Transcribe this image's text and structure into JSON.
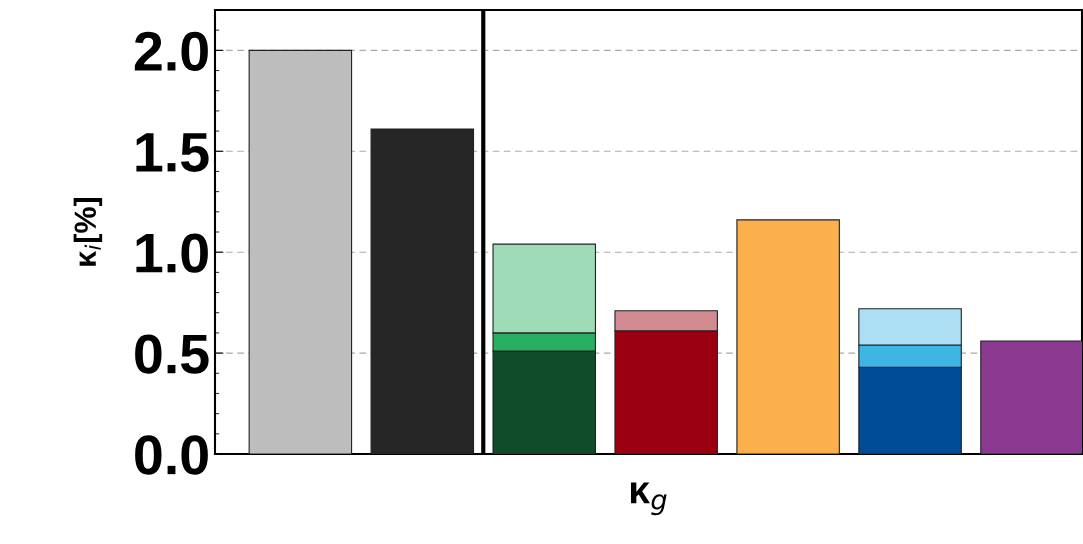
{
  "chart_data": {
    "type": "bar",
    "stacked": true,
    "xlabel": "κ$_{g}$",
    "ylabel": "κ$_{i}$[%]",
    "categories": [
      null,
      null,
      null,
      null,
      null,
      null,
      null
    ],
    "tick_labels": "y",
    "ylim": [
      0,
      2.2
    ],
    "yticks": [
      {
        "value": 0,
        "label": "0.0"
      },
      {
        "value": 0.5,
        "label": "0.5"
      },
      {
        "value": 1,
        "label": "1.0"
      },
      {
        "value": 1.5,
        "label": "1.5"
      },
      {
        "value": 2,
        "label": "2.0"
      }
    ],
    "grid": "y",
    "series": [
      {
        "values": [
          2.0,
          1.61,
          0.51,
          0.61,
          1.16,
          0.43,
          0.56
        ],
        "colors": [
          "#bdbdbd",
          "#262626",
          "#0f4c2a",
          "#9b0010",
          "#fbb04c",
          "#004c97",
          "#8c3a91"
        ]
      },
      {
        "values": [
          null,
          null,
          0.09,
          0.1,
          null,
          0.11,
          null
        ],
        "colors": [
          null,
          null,
          "#27ae60",
          "#d08a90",
          null,
          "#3fb5e5",
          null
        ]
      },
      {
        "values": [
          null,
          null,
          0.44,
          null,
          null,
          0.18,
          null
        ],
        "colors": [
          null,
          null,
          "#a0dbb8",
          null,
          null,
          "#acdff3",
          null
        ]
      }
    ]
  }
}
